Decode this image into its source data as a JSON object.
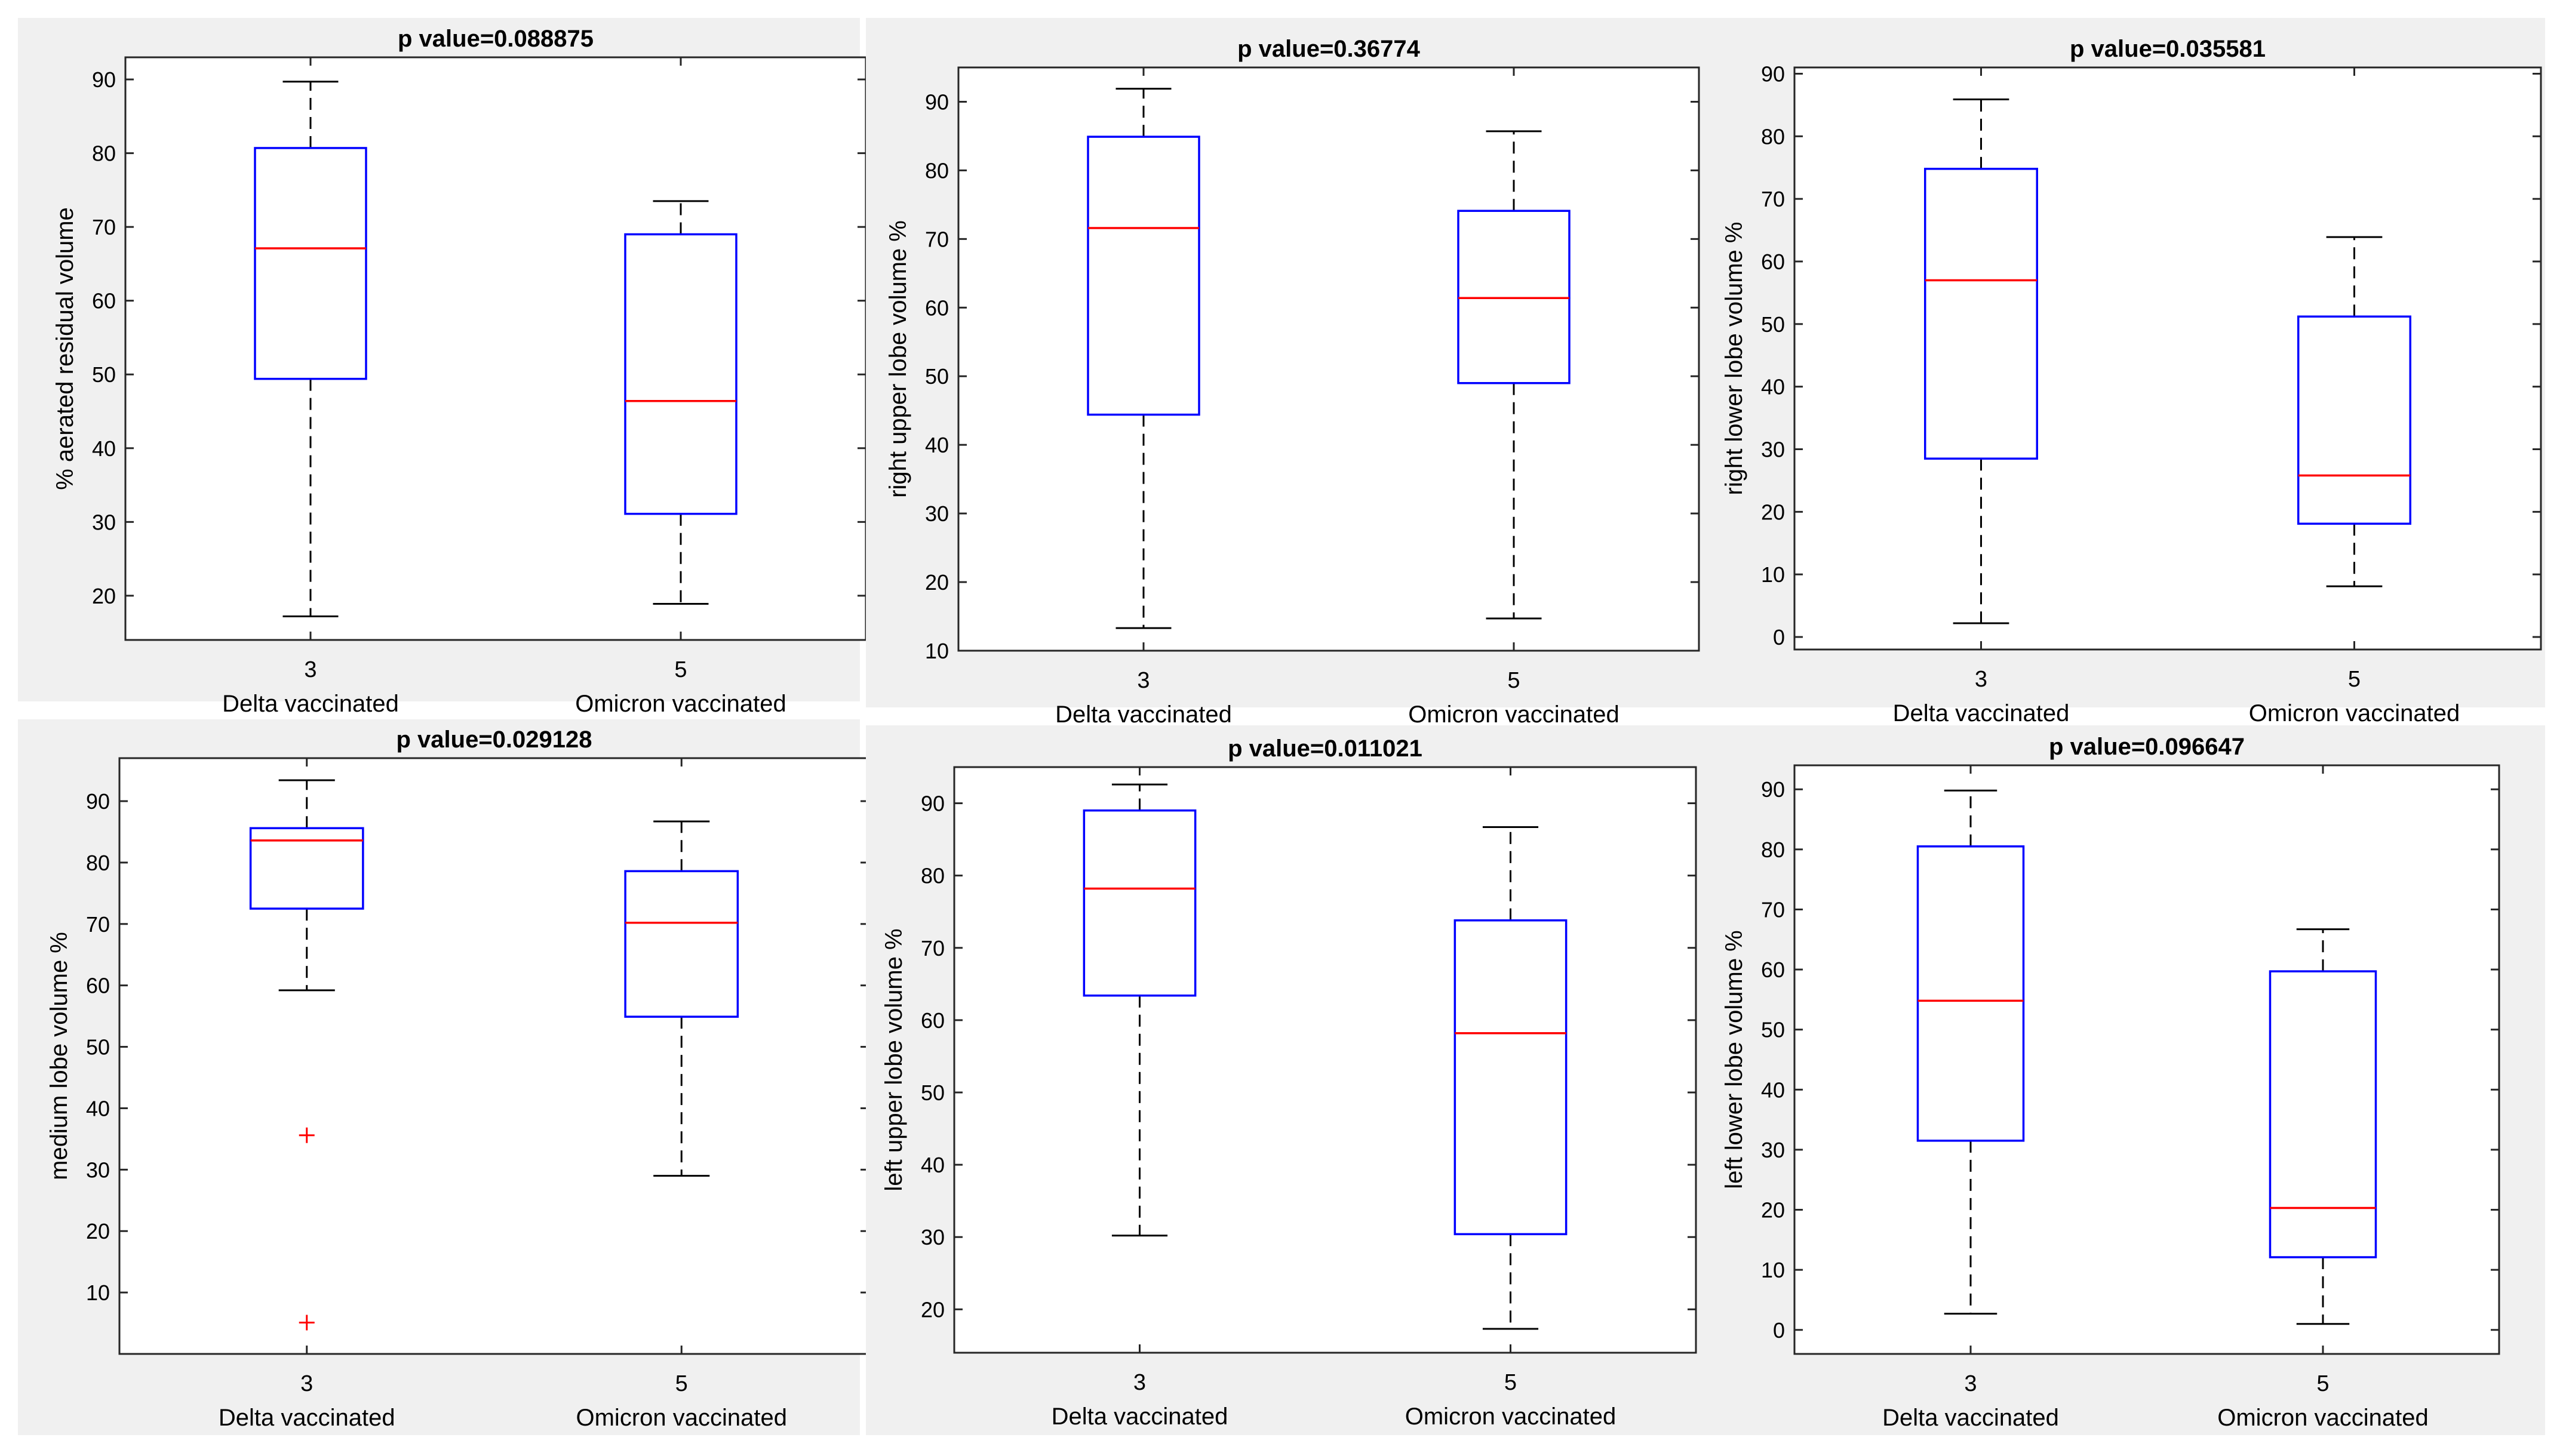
{
  "colors": {
    "figure_bg": "#ffffff",
    "panel_bg": "#f0f0f0",
    "plot_bg": "#ffffff",
    "axis": "#262626",
    "box": "#0000ff",
    "median": "#ff0000",
    "whisker": "#000000",
    "outlier": "#ff0000"
  },
  "chart_data": [
    {
      "type": "box",
      "title": "p value=0.088875",
      "ylabel": "% aerated residual volume",
      "ylim": [
        14,
        93
      ],
      "yticks": [
        20,
        30,
        40,
        50,
        60,
        70,
        80,
        90
      ],
      "categories": [
        {
          "tick": "3",
          "label": "Delta vaccinated",
          "min": 17.2,
          "q1": 49.4,
          "median": 67.1,
          "q3": 80.7,
          "max": 89.7,
          "outliers": []
        },
        {
          "tick": "5",
          "label": "Omicron vaccinated",
          "min": 18.9,
          "q1": 31.1,
          "median": 46.4,
          "q3": 69.0,
          "max": 73.5,
          "outliers": []
        }
      ]
    },
    {
      "type": "box",
      "title": "p value=0.36774",
      "ylabel": "right upper lobe volume %",
      "ylim": [
        10,
        95
      ],
      "yticks": [
        10,
        20,
        30,
        40,
        50,
        60,
        70,
        80,
        90
      ],
      "categories": [
        {
          "tick": "3",
          "label": "Delta vaccinated",
          "min": 13.3,
          "q1": 44.4,
          "median": 71.6,
          "q3": 84.9,
          "max": 91.9,
          "outliers": []
        },
        {
          "tick": "5",
          "label": "Omicron vaccinated",
          "min": 14.7,
          "q1": 49.0,
          "median": 61.4,
          "q3": 74.1,
          "max": 85.7,
          "outliers": []
        }
      ]
    },
    {
      "type": "box",
      "title": "p value=0.035581",
      "ylabel": "right lower lobe volume %",
      "ylim": [
        -2,
        91
      ],
      "yticks": [
        0,
        10,
        20,
        30,
        40,
        50,
        60,
        70,
        80,
        90
      ],
      "categories": [
        {
          "tick": "3",
          "label": "Delta vaccinated",
          "min": 2.2,
          "q1": 28.5,
          "median": 57.0,
          "q3": 74.8,
          "max": 85.9,
          "outliers": []
        },
        {
          "tick": "5",
          "label": "Omicron vaccinated",
          "min": 8.1,
          "q1": 18.1,
          "median": 25.8,
          "q3": 51.2,
          "max": 63.9,
          "outliers": []
        }
      ]
    },
    {
      "type": "box",
      "title": "p value=0.029128",
      "ylabel": "medium lobe volume %",
      "ylim": [
        0,
        97
      ],
      "yticks": [
        10,
        20,
        30,
        40,
        50,
        60,
        70,
        80,
        90
      ],
      "categories": [
        {
          "tick": "3",
          "label": "Delta vaccinated",
          "min": 59.2,
          "q1": 72.5,
          "median": 83.6,
          "q3": 85.6,
          "max": 93.4,
          "outliers": [
            35.6,
            5.1
          ]
        },
        {
          "tick": "5",
          "label": "Omicron vaccinated",
          "min": 29.0,
          "q1": 54.9,
          "median": 70.2,
          "q3": 78.6,
          "max": 86.7,
          "outliers": []
        }
      ]
    },
    {
      "type": "box",
      "title": "p value=0.011021",
      "ylabel": "left upper lobe volume %",
      "ylim": [
        14,
        95
      ],
      "yticks": [
        20,
        30,
        40,
        50,
        60,
        70,
        80,
        90
      ],
      "categories": [
        {
          "tick": "3",
          "label": "Delta vaccinated",
          "min": 30.2,
          "q1": 63.4,
          "median": 78.2,
          "q3": 89.0,
          "max": 92.6,
          "outliers": []
        },
        {
          "tick": "5",
          "label": "Omicron vaccinated",
          "min": 17.3,
          "q1": 30.4,
          "median": 58.2,
          "q3": 73.8,
          "max": 86.7,
          "outliers": []
        }
      ]
    },
    {
      "type": "box",
      "title": "p value=0.096647",
      "ylabel": "left lower lobe volume %",
      "ylim": [
        -4,
        94
      ],
      "yticks": [
        0,
        10,
        20,
        30,
        40,
        50,
        60,
        70,
        80,
        90
      ],
      "categories": [
        {
          "tick": "3",
          "label": "Delta vaccinated",
          "min": 2.7,
          "q1": 31.5,
          "median": 54.8,
          "q3": 80.5,
          "max": 89.8,
          "outliers": []
        },
        {
          "tick": "5",
          "label": "Omicron vaccinated",
          "min": 1.0,
          "q1": 12.1,
          "median": 20.3,
          "q3": 59.7,
          "max": 66.7,
          "outliers": []
        }
      ]
    }
  ]
}
